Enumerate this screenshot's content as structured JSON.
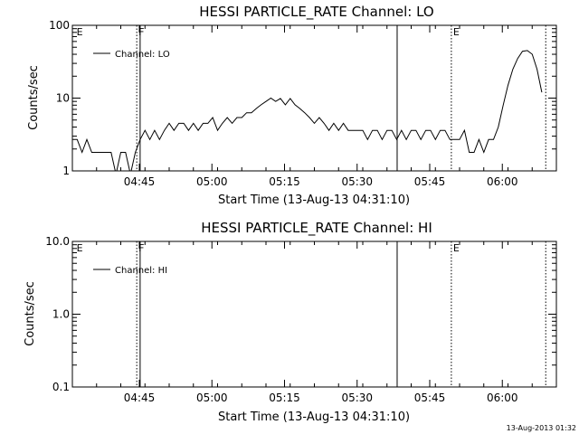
{
  "footer_timestamp": "13-Aug-2013 01:32",
  "chart_data": [
    {
      "type": "line",
      "title": "HESSI PARTICLE_RATE Channel: LO",
      "xlabel": "Start Time (13-Aug-13 04:31:10)",
      "ylabel": "Counts/sec",
      "y_scale": "log",
      "ylim": [
        1,
        100
      ],
      "yticks": [
        "1",
        "10",
        "100"
      ],
      "xticks": [
        "04:45",
        "05:00",
        "05:15",
        "05:30",
        "05:45",
        "06:00"
      ],
      "xlim_minutes": [
        0,
        100
      ],
      "legend_position": "top-left",
      "line_color": "#000000",
      "series": [
        {
          "name": "Channel: LO",
          "x_minutes": [
            0.0,
            1.0,
            2.0,
            3.0,
            4.0,
            5.0,
            6.0,
            7.0,
            8.0,
            9.0,
            10.0,
            11.0,
            12.0,
            13.0,
            14.0,
            15.0,
            16.0,
            17.0,
            18.0,
            19.0,
            20.0,
            21.0,
            22.0,
            23.0,
            24.0,
            25.0,
            26.0,
            27.0,
            28.0,
            29.0,
            30.0,
            31.0,
            32.0,
            33.0,
            34.0,
            35.0,
            36.0,
            37.0,
            38.0,
            39.0,
            40.0,
            41.0,
            42.0,
            43.0,
            44.0,
            45.0,
            46.0,
            47.0,
            48.0,
            49.0,
            50.0,
            51.0,
            52.0,
            53.0,
            54.0,
            55.0,
            56.0,
            57.0,
            58.0,
            59.0,
            60.0,
            61.0,
            62.0,
            63.0,
            64.0,
            65.0,
            66.0,
            67.0,
            68.0,
            69.0,
            70.0,
            71.0,
            72.0,
            73.0,
            74.0,
            75.0,
            76.0,
            77.0,
            78.0,
            79.0,
            80.0,
            81.0,
            82.0,
            83.0,
            84.0,
            85.0,
            86.0,
            87.0,
            88.0,
            89.0,
            90.0,
            91.0,
            92.0,
            93.0,
            94.0,
            95.0,
            96.0,
            97.0
          ],
          "y": [
            2.7,
            2.7,
            1.8,
            2.7,
            1.8,
            1.8,
            1.8,
            1.8,
            1.8,
            0.9,
            1.8,
            1.8,
            0.9,
            1.8,
            2.7,
            3.6,
            2.7,
            3.6,
            2.7,
            3.6,
            4.5,
            3.6,
            4.5,
            4.5,
            3.6,
            4.5,
            3.6,
            4.5,
            4.5,
            5.4,
            3.6,
            4.5,
            5.4,
            4.5,
            5.4,
            5.4,
            6.3,
            6.3,
            7.2,
            8.1,
            9.0,
            10.0,
            9.0,
            9.9,
            8.1,
            9.9,
            8.1,
            7.2,
            6.3,
            5.4,
            4.5,
            5.4,
            4.5,
            3.6,
            4.5,
            3.6,
            4.5,
            3.6,
            3.6,
            3.6,
            3.6,
            2.7,
            3.6,
            3.6,
            2.7,
            3.6,
            3.6,
            2.7,
            3.6,
            2.7,
            3.6,
            3.6,
            2.7,
            3.6,
            3.6,
            2.7,
            3.6,
            3.6,
            2.7,
            2.7,
            2.7,
            3.6,
            1.8,
            1.8,
            2.7,
            1.8,
            2.7,
            2.7,
            4.0,
            8.0,
            15.0,
            25.0,
            35.0,
            44.0,
            45.0,
            40.0,
            25.0,
            12.0
          ]
        }
      ],
      "markers": [
        {
          "label": "E",
          "x_minutes": 0.5,
          "style": "text"
        },
        {
          "label": "F",
          "x_minutes": 13.3,
          "style": "dotted"
        },
        {
          "label": "",
          "x_minutes": 14.0,
          "style": "solid"
        },
        {
          "label": "",
          "x_minutes": 67.1,
          "style": "solid"
        },
        {
          "label": "E",
          "x_minutes": 78.3,
          "style": "dotted"
        },
        {
          "label": "",
          "x_minutes": 97.8,
          "style": "dotted"
        }
      ]
    },
    {
      "type": "line",
      "title": "HESSI PARTICLE_RATE Channel: HI",
      "xlabel": "Start Time (13-Aug-13 04:31:10)",
      "ylabel": "Counts/sec",
      "y_scale": "log",
      "ylim": [
        0.1,
        10.0
      ],
      "yticks": [
        "0.1",
        "1.0",
        "10.0"
      ],
      "xticks": [
        "04:45",
        "05:00",
        "05:15",
        "05:30",
        "05:45",
        "06:00"
      ],
      "xlim_minutes": [
        0,
        100
      ],
      "legend_position": "top-left",
      "line_color": "#000000",
      "series": [
        {
          "name": "Channel: HI",
          "x_minutes": [],
          "y": []
        }
      ],
      "markers": [
        {
          "label": "E",
          "x_minutes": 0.5,
          "style": "text"
        },
        {
          "label": "F",
          "x_minutes": 13.3,
          "style": "dotted"
        },
        {
          "label": "",
          "x_minutes": 14.0,
          "style": "solid"
        },
        {
          "label": "",
          "x_minutes": 67.1,
          "style": "solid"
        },
        {
          "label": "E",
          "x_minutes": 78.3,
          "style": "dotted"
        },
        {
          "label": "",
          "x_minutes": 97.8,
          "style": "dotted"
        }
      ]
    }
  ]
}
